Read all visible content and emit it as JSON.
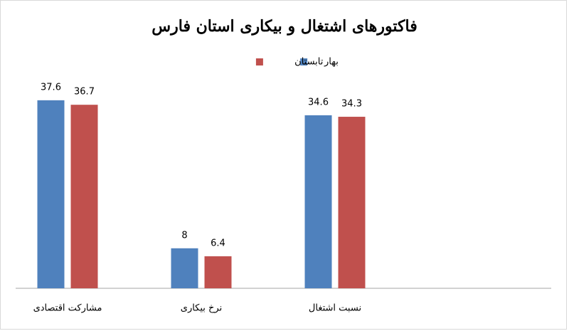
{
  "chart_data": {
    "type": "bar",
    "title": "فاکتورهای اشتغال و بیکاری استان فارس",
    "categories": [
      "مشارکت اقتصادی",
      "نرخ بیکاری",
      "نسبت اشتغال"
    ],
    "series": [
      {
        "name": "بهار",
        "color": "#4f81bd",
        "values": [
          37.6,
          8,
          34.6
        ]
      },
      {
        "name": "تابستان",
        "color": "#c0504d",
        "values": [
          36.7,
          6.4,
          34.3
        ]
      }
    ],
    "legend": "top"
  }
}
